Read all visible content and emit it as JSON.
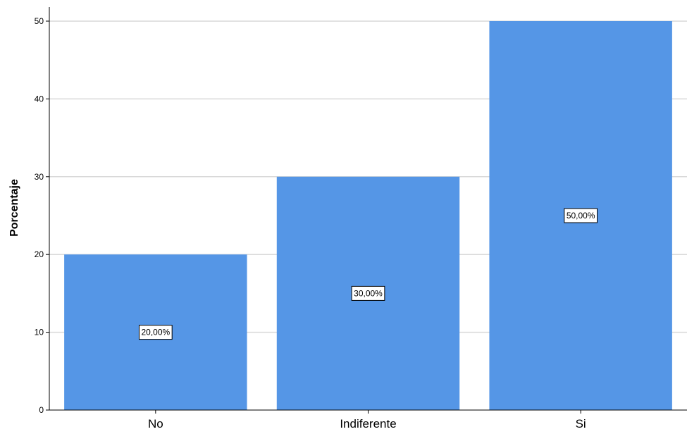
{
  "chart_data": {
    "type": "bar",
    "title": "",
    "xlabel": "",
    "ylabel": "Porcentaje",
    "categories": [
      "No",
      "Indiferente",
      "Si"
    ],
    "values": [
      20,
      30,
      50
    ],
    "data_labels": [
      "20,00%",
      "30,00%",
      "50,00%"
    ],
    "ylim": [
      0,
      50
    ],
    "yticks": [
      "0",
      "10",
      "20",
      "30",
      "40",
      "50"
    ],
    "grid": true,
    "legend": "none",
    "colors": {
      "bar": "#5596e6",
      "grid": "#d9d9d9",
      "axis": "#000000"
    }
  }
}
